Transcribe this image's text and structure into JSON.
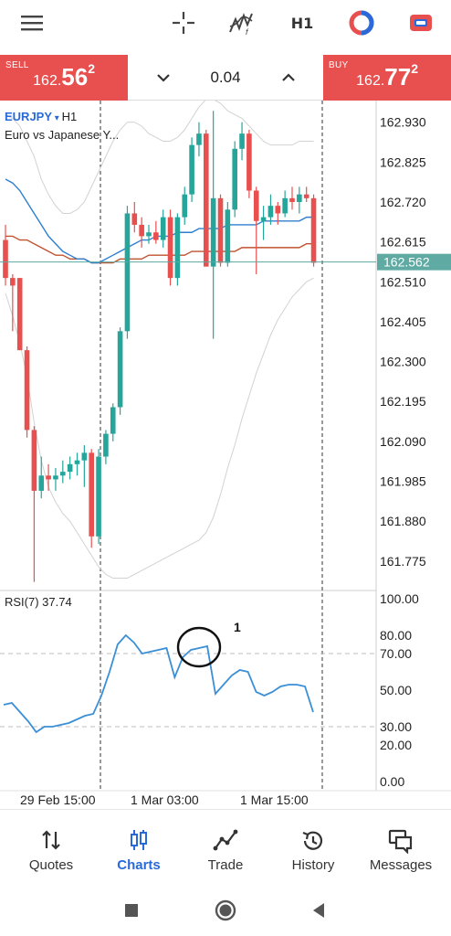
{
  "toolbar": {
    "timeframe": "H1"
  },
  "quote": {
    "sell_label": "SELL",
    "sell_prefix": "162.",
    "sell_big": "56",
    "sell_sup": "2",
    "buy_label": "BUY",
    "buy_prefix": "162.",
    "buy_big": "77",
    "buy_sup": "2",
    "lot": "0.04"
  },
  "chart": {
    "symbol": "EURJPY",
    "timeframe": "H1",
    "description": "Euro vs Japanese Y...",
    "current_price": "162.562",
    "price_axis": [
      "162.930",
      "162.825",
      "162.720",
      "162.615",
      "162.510",
      "162.405",
      "162.300",
      "162.195",
      "162.090",
      "161.985",
      "161.880",
      "161.775"
    ],
    "rsi_label": "RSI(7) 37.74",
    "rsi_axis": [
      "100.00",
      "80.00",
      "70.00",
      "50.00",
      "30.00",
      "20.00",
      "0.00"
    ],
    "time_axis": [
      "29 Feb 15:00",
      "1 Mar 03:00",
      "1 Mar 15:00"
    ],
    "annotation": "1",
    "colors": {
      "bull": "#26a69a",
      "bear": "#e84f4f",
      "ma_fast": "#2f7fd0",
      "ma_slow": "#c0522f",
      "bands": "#d2d2d2",
      "rsi": "#3a8fd6",
      "price_line": "#5aa8a0"
    }
  },
  "chart_data": [
    {
      "type": "candlestick",
      "title": "EURJPY H1",
      "ylim": [
        161.7,
        163.0
      ],
      "yticks": [
        162.93,
        162.825,
        162.72,
        162.615,
        162.51,
        162.405,
        162.3,
        162.195,
        162.09,
        161.985,
        161.88,
        161.775
      ],
      "x_ticks": [
        "29 Feb 15:00",
        "1 Mar 03:00",
        "1 Mar 15:00"
      ],
      "last_price": 162.562,
      "candles": [
        {
          "o": 162.62,
          "h": 162.66,
          "l": 162.5,
          "c": 162.52
        },
        {
          "o": 162.52,
          "h": 162.53,
          "l": 162.38,
          "c": 162.5
        },
        {
          "o": 162.52,
          "h": 162.52,
          "l": 162.33,
          "c": 162.33
        },
        {
          "o": 162.33,
          "h": 162.34,
          "l": 162.1,
          "c": 162.12
        },
        {
          "o": 162.12,
          "h": 162.13,
          "l": 161.72,
          "c": 161.96
        },
        {
          "o": 161.96,
          "h": 162.05,
          "l": 161.94,
          "c": 162.0
        },
        {
          "o": 162.0,
          "h": 162.03,
          "l": 161.96,
          "c": 161.99
        },
        {
          "o": 161.99,
          "h": 162.02,
          "l": 161.96,
          "c": 162.0
        },
        {
          "o": 162.0,
          "h": 162.04,
          "l": 161.98,
          "c": 162.01
        },
        {
          "o": 162.01,
          "h": 162.05,
          "l": 161.99,
          "c": 162.03
        },
        {
          "o": 162.03,
          "h": 162.06,
          "l": 162.0,
          "c": 162.04
        },
        {
          "o": 162.04,
          "h": 162.08,
          "l": 161.97,
          "c": 162.06
        },
        {
          "o": 162.06,
          "h": 162.07,
          "l": 161.81,
          "c": 161.84
        },
        {
          "o": 161.84,
          "h": 162.07,
          "l": 161.82,
          "c": 162.05
        },
        {
          "o": 162.05,
          "h": 162.12,
          "l": 162.03,
          "c": 162.11
        },
        {
          "o": 162.11,
          "h": 162.19,
          "l": 162.09,
          "c": 162.18
        },
        {
          "o": 162.18,
          "h": 162.39,
          "l": 162.16,
          "c": 162.38
        },
        {
          "o": 162.38,
          "h": 162.71,
          "l": 162.36,
          "c": 162.69
        },
        {
          "o": 162.69,
          "h": 162.72,
          "l": 162.64,
          "c": 162.66
        },
        {
          "o": 162.66,
          "h": 162.68,
          "l": 162.6,
          "c": 162.63
        },
        {
          "o": 162.63,
          "h": 162.66,
          "l": 162.61,
          "c": 162.64
        },
        {
          "o": 162.64,
          "h": 162.67,
          "l": 162.61,
          "c": 162.62
        },
        {
          "o": 162.62,
          "h": 162.7,
          "l": 162.6,
          "c": 162.68
        },
        {
          "o": 162.68,
          "h": 162.7,
          "l": 162.5,
          "c": 162.52
        },
        {
          "o": 162.52,
          "h": 162.69,
          "l": 162.5,
          "c": 162.68
        },
        {
          "o": 162.68,
          "h": 162.76,
          "l": 162.66,
          "c": 162.74
        },
        {
          "o": 162.74,
          "h": 162.89,
          "l": 162.72,
          "c": 162.87
        },
        {
          "o": 162.87,
          "h": 162.93,
          "l": 162.84,
          "c": 162.9
        },
        {
          "o": 162.9,
          "h": 162.91,
          "l": 162.55,
          "c": 162.55
        },
        {
          "o": 162.55,
          "h": 162.96,
          "l": 162.36,
          "c": 162.73
        },
        {
          "o": 162.73,
          "h": 162.74,
          "l": 162.55,
          "c": 162.56
        },
        {
          "o": 162.56,
          "h": 162.72,
          "l": 162.55,
          "c": 162.7
        },
        {
          "o": 162.7,
          "h": 162.88,
          "l": 162.68,
          "c": 162.86
        },
        {
          "o": 162.86,
          "h": 162.93,
          "l": 162.83,
          "c": 162.9
        },
        {
          "o": 162.9,
          "h": 162.91,
          "l": 162.73,
          "c": 162.75
        },
        {
          "o": 162.75,
          "h": 162.76,
          "l": 162.53,
          "c": 162.67
        },
        {
          "o": 162.67,
          "h": 162.71,
          "l": 162.62,
          "c": 162.68
        },
        {
          "o": 162.68,
          "h": 162.74,
          "l": 162.66,
          "c": 162.71
        },
        {
          "o": 162.71,
          "h": 162.72,
          "l": 162.66,
          "c": 162.69
        },
        {
          "o": 162.69,
          "h": 162.75,
          "l": 162.68,
          "c": 162.73
        },
        {
          "o": 162.73,
          "h": 162.76,
          "l": 162.7,
          "c": 162.72
        },
        {
          "o": 162.72,
          "h": 162.76,
          "l": 162.69,
          "c": 162.74
        },
        {
          "o": 162.74,
          "h": 162.76,
          "l": 162.72,
          "c": 162.73
        },
        {
          "o": 162.73,
          "h": 162.74,
          "l": 162.55,
          "c": 162.56
        }
      ],
      "ma_fast": [
        162.78,
        162.77,
        162.75,
        162.72,
        162.69,
        162.66,
        162.63,
        162.61,
        162.59,
        162.58,
        162.57,
        162.57,
        162.56,
        162.56,
        162.57,
        162.58,
        162.59,
        162.6,
        162.61,
        162.62,
        162.62,
        162.63,
        162.63,
        162.63,
        162.64,
        162.64,
        162.64,
        162.65,
        162.65,
        162.65,
        162.65,
        162.66,
        162.66,
        162.66,
        162.66,
        162.66,
        162.67,
        162.67,
        162.67,
        162.67,
        162.67,
        162.67,
        162.68,
        162.68
      ],
      "ma_slow": [
        162.63,
        162.63,
        162.62,
        162.62,
        162.61,
        162.6,
        162.59,
        162.58,
        162.58,
        162.57,
        162.57,
        162.57,
        162.56,
        162.56,
        162.56,
        162.56,
        162.57,
        162.57,
        162.57,
        162.57,
        162.58,
        162.58,
        162.58,
        162.58,
        162.58,
        162.58,
        162.59,
        162.59,
        162.59,
        162.59,
        162.59,
        162.59,
        162.59,
        162.6,
        162.6,
        162.6,
        162.6,
        162.6,
        162.6,
        162.6,
        162.6,
        162.6,
        162.61,
        162.61
      ],
      "band_upper": [
        162.95,
        162.94,
        162.92,
        162.88,
        162.84,
        162.78,
        162.74,
        162.71,
        162.69,
        162.69,
        162.7,
        162.72,
        162.76,
        162.8,
        162.84,
        162.88,
        162.91,
        162.93,
        162.93,
        162.92,
        162.9,
        162.89,
        162.88,
        162.88,
        162.89,
        162.91,
        162.94,
        162.97,
        162.99,
        162.99,
        162.98,
        162.96,
        162.95,
        162.94,
        162.92,
        162.9,
        162.88,
        162.87,
        162.87,
        162.87,
        162.87,
        162.88,
        162.88,
        162.88
      ],
      "band_lower": [
        162.48,
        162.42,
        162.35,
        162.26,
        162.14,
        162.04,
        161.97,
        161.93,
        161.9,
        161.88,
        161.85,
        161.82,
        161.79,
        161.76,
        161.74,
        161.73,
        161.73,
        161.73,
        161.74,
        161.75,
        161.76,
        161.77,
        161.78,
        161.79,
        161.8,
        161.81,
        161.82,
        161.83,
        161.85,
        161.89,
        161.95,
        162.02,
        162.08,
        162.15,
        162.21,
        162.27,
        162.32,
        162.37,
        162.41,
        162.44,
        162.47,
        162.49,
        162.51,
        162.52
      ]
    },
    {
      "type": "line",
      "title": "RSI(7) 37.74",
      "ylim": [
        0,
        100
      ],
      "yticks": [
        100,
        80,
        70,
        50,
        30,
        20,
        0
      ],
      "levels": [
        70,
        30
      ],
      "series": [
        {
          "values": [
            42,
            43,
            38,
            33,
            27,
            30,
            30,
            31,
            32,
            34,
            36,
            37,
            47,
            60,
            75,
            80,
            76,
            70,
            71,
            72,
            73,
            57,
            68,
            72,
            73,
            74,
            48,
            53,
            58,
            61,
            60,
            49,
            47,
            49,
            52,
            53,
            53,
            52,
            38
          ]
        }
      ],
      "annotation": "1"
    }
  ]
}
